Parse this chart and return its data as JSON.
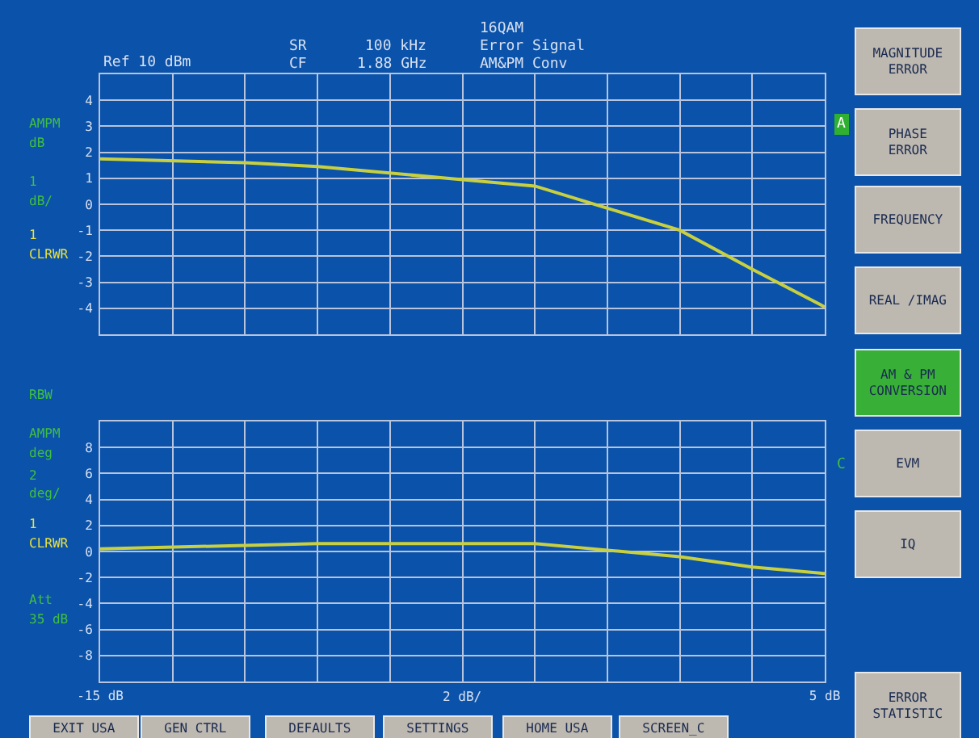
{
  "chart_data": [
    {
      "type": "line",
      "title": "AM&PM Conv",
      "x": [
        -15,
        -11,
        -9,
        -5,
        -3,
        -1,
        1,
        3,
        5
      ],
      "series": [
        {
          "color": "#c8d040",
          "values": [
            1.75,
            1.6,
            1.45,
            0.95,
            0.7,
            -0.15,
            -1.0,
            -2.5,
            -3.95
          ]
        }
      ],
      "xlim": [
        -15,
        5
      ],
      "xticks": [
        {
          "value": -15,
          "label": null
        },
        {
          "value": -13,
          "label": null
        },
        {
          "value": -11,
          "label": null
        },
        {
          "value": -9,
          "label": null
        },
        {
          "value": -7,
          "label": null
        },
        {
          "value": -5,
          "label": null
        },
        {
          "value": -3,
          "label": null
        },
        {
          "value": -1,
          "label": null
        },
        {
          "value": 1,
          "label": null
        },
        {
          "value": 3,
          "label": null
        },
        {
          "value": 5,
          "label": null
        }
      ],
      "ylim": [
        -5,
        5
      ],
      "yticks": [
        -4,
        -3,
        -2,
        -1,
        0,
        1,
        2,
        3,
        4
      ],
      "tick_labels": "y",
      "grid": true,
      "annotations": [
        "Ref 10 dBm",
        "SR",
        "CF",
        "100 kHz",
        "1.88 GHz",
        "16QAM",
        "Error Signal",
        "AMPM",
        "dB",
        "1",
        "dB/",
        "1",
        "CLRWR",
        "A"
      ]
    },
    {
      "type": "line",
      "xlabel": "2 dB/",
      "x": [
        -15,
        -9,
        -5,
        -3,
        -1,
        1,
        3,
        5
      ],
      "series": [
        {
          "color": "#c8d040",
          "values": [
            0.2,
            0.6,
            0.6,
            0.6,
            0.1,
            -0.4,
            -1.2,
            -1.7
          ]
        }
      ],
      "xlim": [
        -15,
        5
      ],
      "xticks": [
        {
          "value": -15,
          "label": "-15 dB"
        },
        {
          "value": -13,
          "label": null
        },
        {
          "value": -11,
          "label": null
        },
        {
          "value": -9,
          "label": null
        },
        {
          "value": -7,
          "label": null
        },
        {
          "value": -5,
          "label": null
        },
        {
          "value": -3,
          "label": null
        },
        {
          "value": -1,
          "label": null
        },
        {
          "value": 1,
          "label": null
        },
        {
          "value": 3,
          "label": null
        },
        {
          "value": 5,
          "label": "5 dB"
        }
      ],
      "ylim": [
        -10,
        10
      ],
      "yticks": [
        -8,
        -6,
        -4,
        -2,
        0,
        2,
        4,
        6,
        8
      ],
      "grid": true,
      "annotations": [
        "RBW",
        "AMPM",
        "deg",
        "2",
        "deg/",
        "1",
        "CLRWR",
        "Att",
        "35 dB",
        "C"
      ]
    },
    {
      "type": "other",
      "annotations": [
        "MAGNITUDE\nERROR",
        "PHASE\nERROR",
        "FREQUENCY",
        "REAL /IMAG",
        "AM & PM\nCONVERSION",
        "EVM",
        "IQ",
        "ERROR\nSTATISTIC",
        "EXIT USA",
        "GEN CTRL",
        "DEFAULTS",
        "SETTINGS",
        "HOME USA",
        "SCREEN_C"
      ]
    }
  ]
}
